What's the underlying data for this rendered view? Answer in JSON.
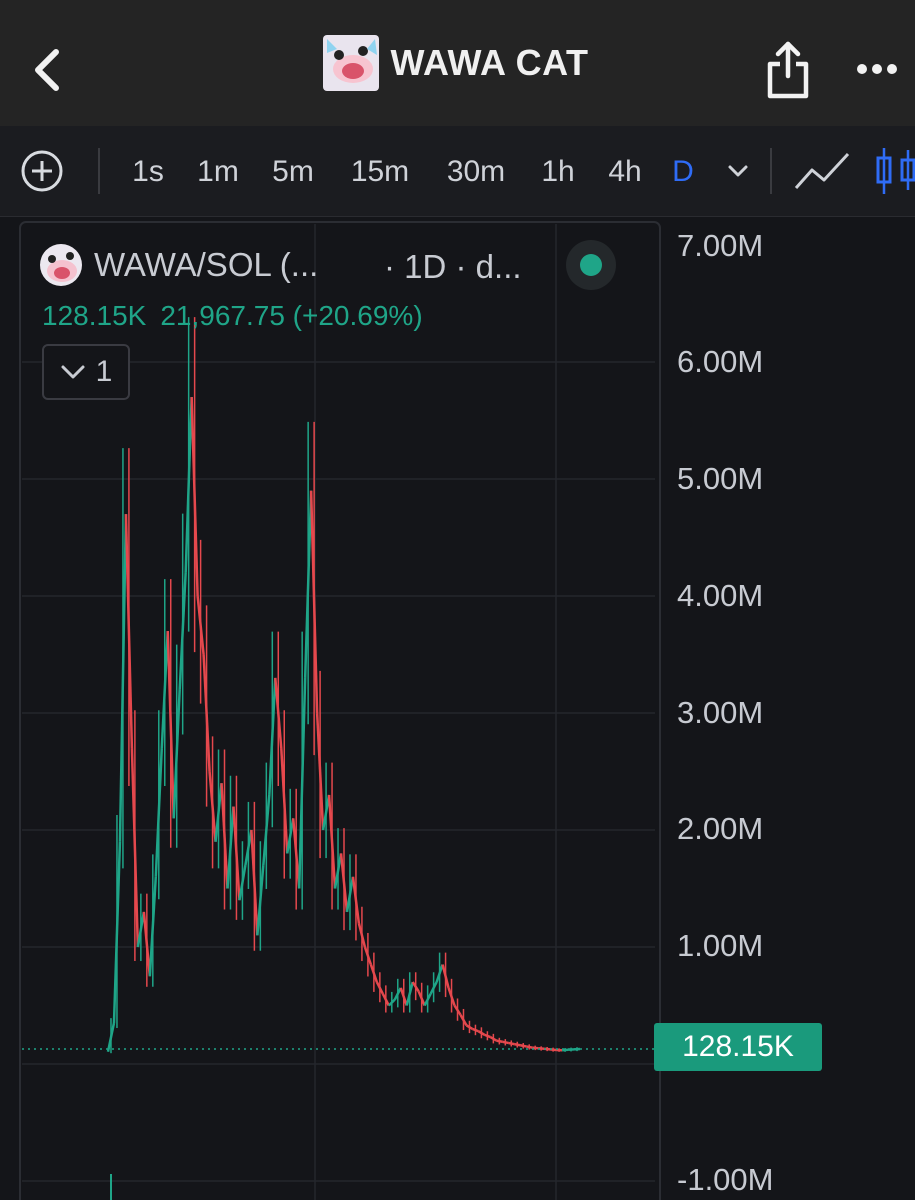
{
  "header": {
    "title": "WAWA CAT",
    "icons": {
      "back": "chevron-left-icon",
      "share": "share-icon",
      "more": "more-icon"
    }
  },
  "timeframes": {
    "items": [
      {
        "label": "1s"
      },
      {
        "label": "1m"
      },
      {
        "label": "5m"
      },
      {
        "label": "15m"
      },
      {
        "label": "30m"
      },
      {
        "label": "1h"
      },
      {
        "label": "4h"
      },
      {
        "label": "D",
        "active": true
      }
    ],
    "active_color": "#2f6cf6"
  },
  "legend": {
    "pair": "WAWA/SOL (...",
    "interval": "· 1D · d...",
    "last_value": "128.15K",
    "change": "21,967.75 (+20.69%)",
    "collapse_count": "1",
    "status_color": "#1fa588"
  },
  "price_badge": "128.15K",
  "colors": {
    "up": "#1fa588",
    "down": "#e5484d",
    "background": "#141519"
  },
  "chart_data": {
    "type": "line",
    "series": [
      {
        "values": [
          105000,
          350000,
          1900000,
          4700000,
          2700000,
          1000000,
          1300000,
          750000,
          1600000,
          2700000,
          3700000,
          2100000,
          3200000,
          4200000,
          5700000,
          4000000,
          3500000,
          2500000,
          1900000,
          2400000,
          1500000,
          2200000,
          1400000,
          1700000,
          2000000,
          1100000,
          1700000,
          2300000,
          3300000,
          2700000,
          1800000,
          2100000,
          1500000,
          3300000,
          4900000,
          3000000,
          2000000,
          2300000,
          1500000,
          1800000,
          1300000,
          1600000,
          1200000,
          1000000,
          850000,
          700000,
          600000,
          500000,
          550000,
          650000,
          500000,
          700000,
          620000,
          500000,
          600000,
          700000,
          850000,
          650000,
          500000,
          420000,
          330000,
          300000,
          280000,
          250000,
          230000,
          200000,
          190000,
          180000,
          170000,
          160000,
          150000,
          140000,
          135000,
          130000,
          125000,
          120000,
          118000,
          122000,
          125000,
          128150
        ]
      }
    ],
    "y_ticks": [
      "7.00M",
      "6.00M",
      "5.00M",
      "4.00M",
      "3.00M",
      "2.00M",
      "1.00M",
      "-1.00M"
    ],
    "ylim": [
      -1000000,
      7000000
    ],
    "last_value_line": 128150,
    "grid": true
  }
}
